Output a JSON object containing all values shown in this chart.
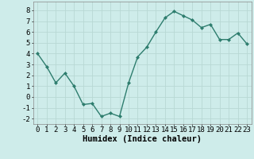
{
  "x": [
    0,
    1,
    2,
    3,
    4,
    5,
    6,
    7,
    8,
    9,
    10,
    11,
    12,
    13,
    14,
    15,
    16,
    17,
    18,
    19,
    20,
    21,
    22,
    23
  ],
  "y": [
    4.0,
    2.8,
    1.3,
    2.2,
    1.0,
    -0.7,
    -0.6,
    -1.8,
    -1.5,
    -1.8,
    1.3,
    3.7,
    4.6,
    6.0,
    7.3,
    7.9,
    7.5,
    7.1,
    6.4,
    6.7,
    5.3,
    5.3,
    5.9,
    4.9
  ],
  "line_color": "#2e7d6e",
  "marker": "D",
  "marker_size": 2.0,
  "line_width": 1.0,
  "xlabel": "Humidex (Indice chaleur)",
  "ylim": [
    -2.5,
    8.8
  ],
  "xlim": [
    -0.5,
    23.5
  ],
  "yticks": [
    -2,
    -1,
    0,
    1,
    2,
    3,
    4,
    5,
    6,
    7,
    8
  ],
  "xticks": [
    0,
    1,
    2,
    3,
    4,
    5,
    6,
    7,
    8,
    9,
    10,
    11,
    12,
    13,
    14,
    15,
    16,
    17,
    18,
    19,
    20,
    21,
    22,
    23
  ],
  "bg_color": "#ceecea",
  "grid_color": "#b8d8d4",
  "xlabel_fontsize": 7.5,
  "tick_fontsize": 6.5
}
